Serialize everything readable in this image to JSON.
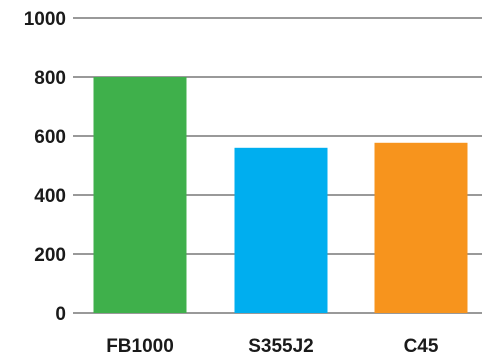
{
  "chart_data": {
    "type": "bar",
    "categories": [
      "FB1000",
      "S355J2",
      "C45"
    ],
    "values": [
      800,
      560,
      577
    ],
    "colors": [
      "#3fb04b",
      "#00aeef",
      "#f7941d"
    ],
    "yticks": [
      "0",
      "200",
      "400",
      "600",
      "800",
      "1000"
    ],
    "ylim": [
      0,
      1000
    ],
    "grid": true,
    "title": "",
    "xlabel": "",
    "ylabel": ""
  }
}
